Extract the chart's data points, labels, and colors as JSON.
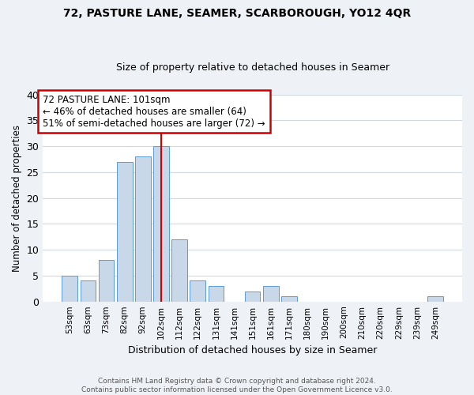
{
  "title": "72, PASTURE LANE, SEAMER, SCARBOROUGH, YO12 4QR",
  "subtitle": "Size of property relative to detached houses in Seamer",
  "xlabel": "Distribution of detached houses by size in Seamer",
  "ylabel": "Number of detached properties",
  "bar_labels": [
    "53sqm",
    "63sqm",
    "73sqm",
    "82sqm",
    "92sqm",
    "102sqm",
    "112sqm",
    "122sqm",
    "131sqm",
    "141sqm",
    "151sqm",
    "161sqm",
    "171sqm",
    "180sqm",
    "190sqm",
    "200sqm",
    "210sqm",
    "220sqm",
    "229sqm",
    "239sqm",
    "249sqm"
  ],
  "bar_values": [
    5,
    4,
    8,
    27,
    28,
    30,
    12,
    4,
    3,
    0,
    2,
    3,
    1,
    0,
    0,
    0,
    0,
    0,
    0,
    0,
    1
  ],
  "bar_color": "#c8d8e8",
  "bar_edge_color": "#5b9bd5",
  "vline_x_index": 5,
  "vline_color": "#cc0000",
  "annotation_title": "72 PASTURE LANE: 101sqm",
  "annotation_line1": "← 46% of detached houses are smaller (64)",
  "annotation_line2": "51% of semi-detached houses are larger (72) →",
  "annotation_box_color": "#ffffff",
  "annotation_box_edge": "#cc0000",
  "ylim": [
    0,
    40
  ],
  "yticks": [
    0,
    5,
    10,
    15,
    20,
    25,
    30,
    35,
    40
  ],
  "footer_line1": "Contains HM Land Registry data © Crown copyright and database right 2024.",
  "footer_line2": "Contains public sector information licensed under the Open Government Licence v3.0.",
  "bg_color": "#eef2f7",
  "plot_bg_color": "#ffffff",
  "grid_color": "#d0d8e0"
}
